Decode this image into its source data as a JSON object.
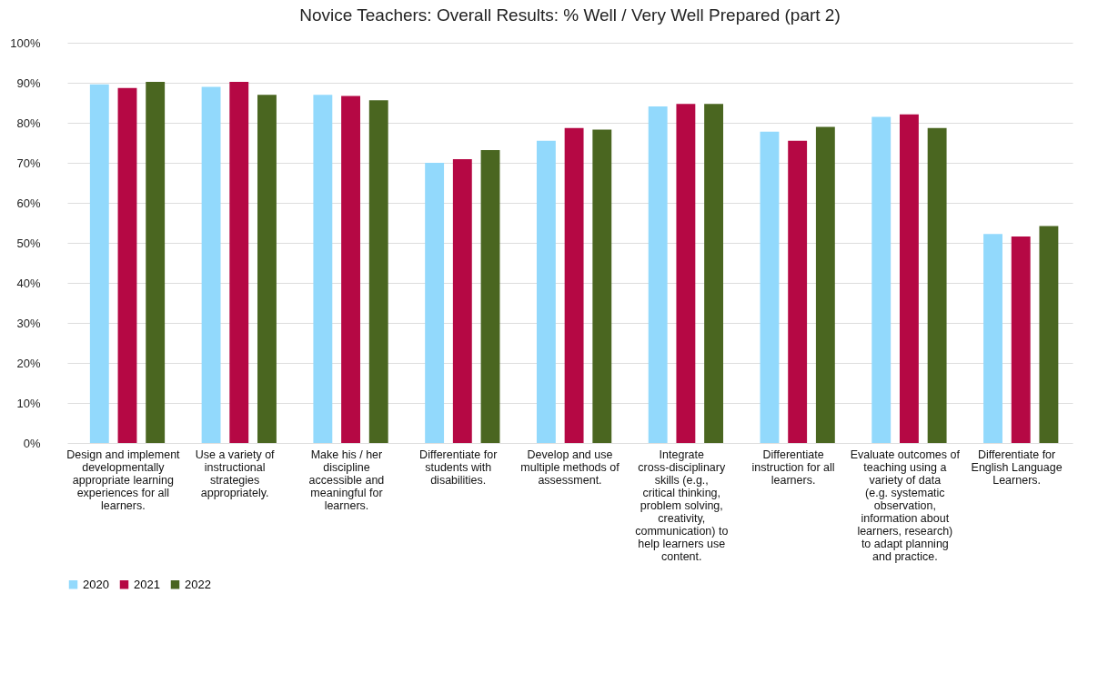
{
  "chart_data": {
    "type": "bar",
    "title": "Novice Teachers: Overall Results: % Well / Very Well Prepared (part 2)",
    "categories": [
      "Design and implement developmentally appropriate learning experiences for all learners.",
      "Use a variety of instructional strategies appropriately.",
      "Make his / her discipline accessible and meaningful for learners.",
      "Differentiate for students with disabilities.",
      "Develop and use multiple methods of assessment.",
      "Integrate cross-disciplinary skills (e.g., critical thinking, problem solving, creativity, communication) to help learners use content.",
      "Differentiate instruction for all learners.",
      "Evaluate outcomes of teaching using a variety of data (e.g. systematic observation, information about learners, research) to adapt planning and practice.",
      "Differentiate for English Language Learners."
    ],
    "series": [
      {
        "name": "2020",
        "color": "#92d9fc",
        "values": [
          89.6,
          89.0,
          87.0,
          70.0,
          75.5,
          84.1,
          77.8,
          81.5,
          52.2
        ]
      },
      {
        "name": "2021",
        "color": "#b50844",
        "values": [
          88.7,
          90.2,
          86.7,
          70.9,
          78.7,
          84.7,
          75.5,
          82.1,
          51.6
        ]
      },
      {
        "name": "2022",
        "color": "#4a6620",
        "values": [
          90.2,
          87.0,
          85.6,
          73.2,
          78.3,
          84.7,
          79.0,
          78.7,
          54.2
        ]
      }
    ],
    "ylim": [
      0,
      100
    ],
    "yticks": [
      {
        "value": 0,
        "label": "0%"
      },
      {
        "value": 10,
        "label": "10%"
      },
      {
        "value": 20,
        "label": "20%"
      },
      {
        "value": 30,
        "label": "30%"
      },
      {
        "value": 40,
        "label": "40%"
      },
      {
        "value": 50,
        "label": "50%"
      },
      {
        "value": 60,
        "label": "60%"
      },
      {
        "value": 70,
        "label": "70%"
      },
      {
        "value": 80,
        "label": "80%"
      },
      {
        "value": 90,
        "label": "90%"
      },
      {
        "value": 100,
        "label": "100%"
      }
    ],
    "grid": "y",
    "legend": "bottom"
  }
}
